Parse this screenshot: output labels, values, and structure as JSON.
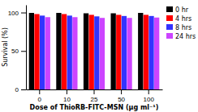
{
  "chart_data": {
    "type": "bar",
    "categories": [
      0,
      10,
      25,
      50,
      100
    ],
    "series": [
      {
        "name": "0 hr",
        "color": "#000000",
        "values": [
          99.5,
          99.5,
          99.0,
          99.0,
          99.5
        ]
      },
      {
        "name": "4 hrs",
        "color": "#ff0000",
        "values": [
          98.0,
          98.0,
          97.0,
          97.0,
          97.0
        ]
      },
      {
        "name": "8 hrs",
        "color": "#3333ff",
        "values": [
          96.0,
          96.0,
          95.0,
          95.5,
          95.5
        ]
      },
      {
        "name": "24 hrs",
        "color": "#cc44ff",
        "values": [
          94.0,
          94.0,
          93.0,
          93.0,
          93.5
        ]
      }
    ],
    "xlabel": "Dose of ThioRB-FITC-MSN (μg ml⁻¹)",
    "ylabel": "Survival (%)",
    "ylim": [
      0,
      110
    ],
    "yticks": [
      0,
      50,
      100
    ],
    "grid": false,
    "legend": "right"
  }
}
